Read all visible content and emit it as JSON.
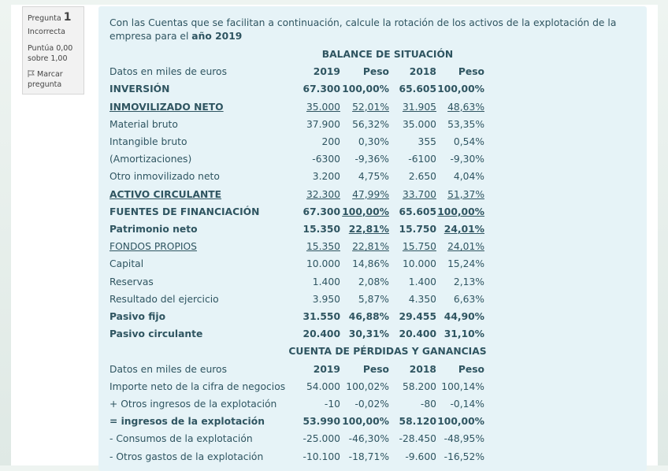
{
  "info": {
    "label": "Pregunta",
    "number": "1",
    "state": "Incorrecta",
    "grade": "Puntúa 0,00 sobre 1,00",
    "flag": "Marcar pregunta"
  },
  "question": {
    "text": "Con las Cuentas que se facilitan a continuación, calcule la rotación de los activos de la explotación de la empresa para el",
    "emphasis": "año 2019"
  },
  "sections": [
    {
      "heading": "BALANCE DE SITUACIÓN",
      "rows": [
        {
          "cells": [
            "Datos en miles de euros",
            "2019",
            "Peso",
            "2018",
            "Peso"
          ],
          "bold_cells": [
            1,
            2,
            3,
            4
          ],
          "underlined_cells": []
        },
        {
          "cells": [
            "INVERSIÓN",
            "67.300",
            "100,00%",
            "65.605",
            "100,00%"
          ],
          "bold_cells": [
            0,
            1,
            2,
            3,
            4
          ],
          "underlined_cells": []
        },
        {
          "cells": [
            "INMOVILIZADO NETO",
            "35.000",
            "52,01%",
            "31.905",
            "48,63%"
          ],
          "bold_cells": [
            0
          ],
          "underlined_cells": [
            0,
            1,
            2,
            3,
            4
          ]
        },
        {
          "cells": [
            "Material bruto",
            "37.900",
            "56,32%",
            "35.000",
            "53,35%"
          ],
          "bold_cells": [],
          "underlined_cells": []
        },
        {
          "cells": [
            "Intangible bruto",
            "200",
            "0,30%",
            "355",
            "0,54%"
          ],
          "bold_cells": [],
          "underlined_cells": []
        },
        {
          "cells": [
            "(Amortizaciones)",
            "-6300",
            "-9,36%",
            "-6100",
            "-9,30%"
          ],
          "bold_cells": [],
          "underlined_cells": []
        },
        {
          "cells": [
            "Otro inmovilizado neto",
            "3.200",
            "4,75%",
            "2.650",
            "4,04%"
          ],
          "bold_cells": [],
          "underlined_cells": []
        },
        {
          "cells": [
            "ACTIVO CIRCULANTE",
            "32.300",
            "47,99%",
            "33.700",
            "51,37%"
          ],
          "bold_cells": [
            0
          ],
          "underlined_cells": [
            0,
            1,
            2,
            3,
            4
          ]
        },
        {
          "cells": [
            "FUENTES DE FINANCIACIÓN",
            "67.300",
            "100,00%",
            "65.605",
            "100,00%"
          ],
          "bold_cells": [
            0,
            1,
            2,
            3,
            4
          ],
          "underlined_cells": [
            2,
            4
          ]
        },
        {
          "cells": [
            "Patrimonio neto",
            "15.350",
            "22,81%",
            "15.750",
            "24,01%"
          ],
          "bold_cells": [
            0,
            1,
            2,
            3,
            4
          ],
          "underlined_cells": [
            2,
            4
          ]
        },
        {
          "cells": [
            "FONDOS PROPIOS",
            "15.350",
            "22,81%",
            "15.750",
            "24,01%"
          ],
          "bold_cells": [],
          "underlined_cells": [
            0,
            1,
            2,
            3,
            4
          ]
        },
        {
          "cells": [
            "Capital",
            "10.000",
            "14,86%",
            "10.000",
            "15,24%"
          ],
          "bold_cells": [],
          "underlined_cells": []
        },
        {
          "cells": [
            "Reservas",
            "1.400",
            "2,08%",
            "1.400",
            "2,13%"
          ],
          "bold_cells": [],
          "underlined_cells": []
        },
        {
          "cells": [
            "Resultado del ejercicio",
            "3.950",
            "5,87%",
            "4.350",
            "6,63%"
          ],
          "bold_cells": [],
          "underlined_cells": []
        },
        {
          "cells": [
            "Pasivo fijo",
            "31.550",
            "46,88%",
            "29.455",
            "44,90%"
          ],
          "bold_cells": [
            0,
            1,
            2,
            3,
            4
          ],
          "underlined_cells": []
        },
        {
          "cells": [
            "Pasivo circulante",
            "20.400",
            "30,31%",
            "20.400",
            "31,10%"
          ],
          "bold_cells": [
            0,
            1,
            2,
            3,
            4
          ],
          "underlined_cells": []
        }
      ]
    },
    {
      "heading": "CUENTA DE PÉRDIDAS Y GANANCIAS",
      "rows": [
        {
          "cells": [
            "Datos en miles de euros",
            "2019",
            "Peso",
            "2018",
            "Peso"
          ],
          "bold_cells": [
            1,
            2,
            3,
            4
          ],
          "underlined_cells": []
        },
        {
          "cells": [
            "Importe neto de la cifra de negocios",
            "54.000",
            "100,02%",
            "58.200",
            "100,14%"
          ],
          "bold_cells": [],
          "underlined_cells": []
        },
        {
          "cells": [
            "+ Otros ingresos de la explotación",
            "-10",
            "-0,02%",
            "-80",
            "-0,14%"
          ],
          "bold_cells": [],
          "underlined_cells": []
        },
        {
          "cells": [
            "= ingresos de la explotación",
            "53.990",
            "100,00%",
            "58.120",
            "100,00%"
          ],
          "bold_cells": [
            0,
            1,
            2,
            3,
            4
          ],
          "underlined_cells": []
        },
        {
          "cells": [
            "- Consumos de la explotación",
            "-25.000",
            "-46,30%",
            "-28.450",
            "-48,95%"
          ],
          "bold_cells": [],
          "underlined_cells": []
        },
        {
          "cells": [
            "- Otros gastos de la explotación",
            "-10.100",
            "-18,71%",
            "-9.600",
            "-16,52%"
          ],
          "bold_cells": [],
          "underlined_cells": []
        }
      ]
    }
  ]
}
